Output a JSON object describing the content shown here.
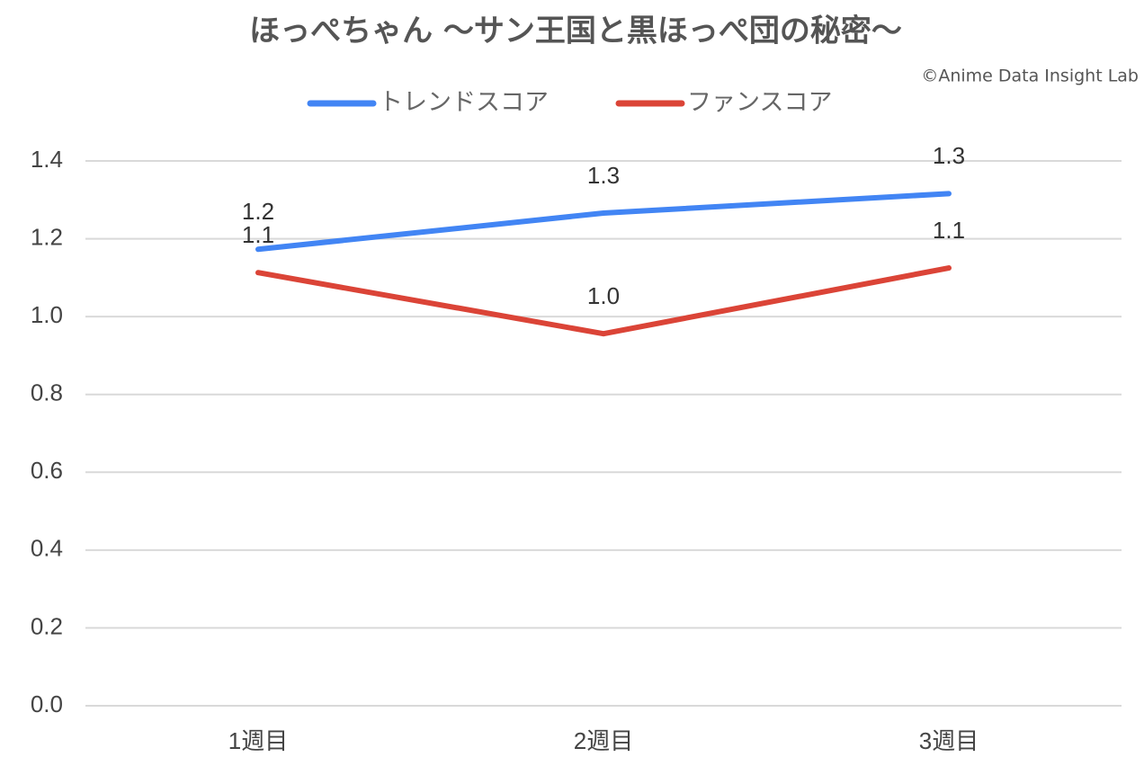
{
  "chart_data": {
    "type": "line",
    "title": "ほっぺちゃん ～サン王国と黒ほっぺ団の秘密～",
    "annotation": "©Anime Data Insight Lab",
    "categories": [
      "1週目",
      "2週目",
      "3週目"
    ],
    "series": [
      {
        "name": "トレンドスコア",
        "color": "#4285f4",
        "values": [
          1.173,
          1.266,
          1.316
        ],
        "value_labels": [
          "1.2",
          "1.3",
          "1.3"
        ]
      },
      {
        "name": "ファンスコア",
        "color": "#db4437",
        "values": [
          1.113,
          0.956,
          1.125
        ],
        "value_labels": [
          "1.1",
          "1.0",
          "1.1"
        ]
      }
    ],
    "ylim": [
      0,
      1.4
    ],
    "yticks": [
      {
        "value": 0,
        "label": "0.0"
      },
      0.2,
      0.4,
      0.6,
      0.8,
      {
        "value": 1,
        "label": "1.0"
      },
      1.2,
      1.4
    ],
    "grid": true
  }
}
